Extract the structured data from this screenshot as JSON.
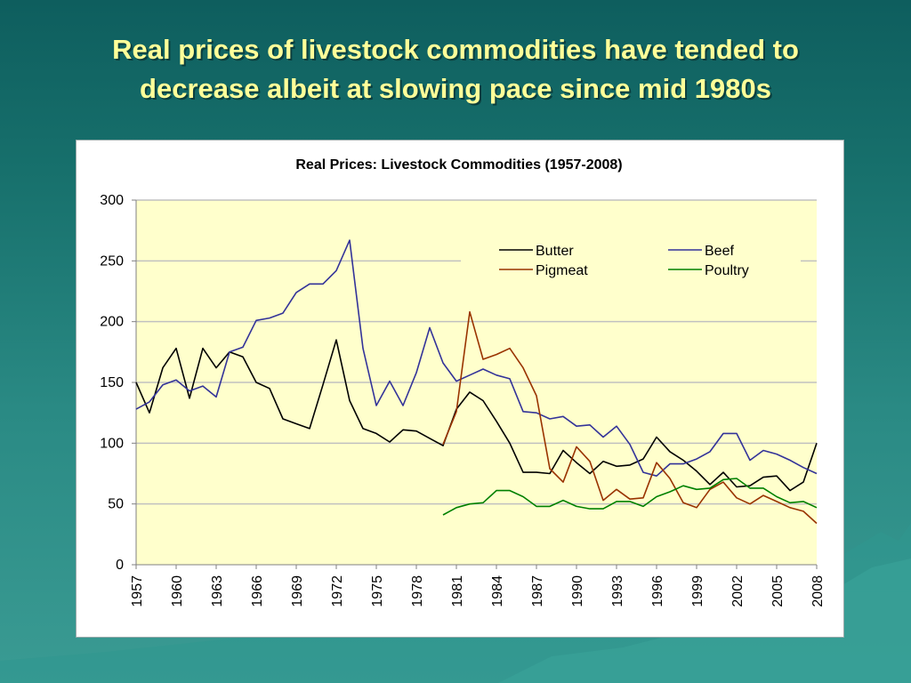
{
  "slide": {
    "title_line1": "Real prices of livestock commodities have tended to",
    "title_line2": "decrease albeit at slowing pace since mid 1980s"
  },
  "colors": {
    "title": "#ffff99",
    "plot_bg": "#ffffcc",
    "grid": "#c0c0c0",
    "butter": "#000000",
    "beef": "#333399",
    "pigmeat": "#993300",
    "poultry": "#008000"
  },
  "chart_data": {
    "type": "line",
    "title": "Real Prices: Livestock Commodities (1957-2008)",
    "xlabel": "",
    "ylabel": "",
    "ylim": [
      0,
      300
    ],
    "yticks": [
      0,
      50,
      100,
      150,
      200,
      250,
      300
    ],
    "xlim": [
      1957,
      2008
    ],
    "xtick_labels": [
      "1957",
      "1960",
      "1963",
      "1966",
      "1969",
      "1972",
      "1975",
      "1978",
      "1981",
      "1984",
      "1987",
      "1990",
      "1993",
      "1996",
      "1999",
      "2002",
      "2005",
      "2008"
    ],
    "legend": [
      "Butter",
      "Beef",
      "Pigmeat",
      "Poultry"
    ],
    "legend_position": "top-right",
    "grid": true,
    "series": [
      {
        "name": "Butter",
        "start_year": 1957,
        "values": [
          150,
          125,
          162,
          178,
          137,
          178,
          162,
          175,
          171,
          150,
          145,
          120,
          116,
          112,
          148,
          185,
          135,
          112,
          108,
          101,
          111,
          110,
          104,
          98,
          128,
          142,
          135,
          118,
          100,
          76,
          76,
          75,
          94,
          84,
          75,
          85,
          81,
          82,
          87,
          105,
          93,
          86,
          77,
          66,
          76,
          64,
          65,
          72,
          73,
          61,
          68,
          100
        ]
      },
      {
        "name": "Beef",
        "start_year": 1957,
        "values": [
          128,
          134,
          148,
          152,
          143,
          147,
          138,
          175,
          179,
          201,
          203,
          207,
          224,
          231,
          231,
          242,
          267,
          178,
          131,
          151,
          131,
          158,
          195,
          166,
          151,
          156,
          161,
          156,
          153,
          126,
          125,
          120,
          122,
          114,
          115,
          105,
          114,
          99,
          76,
          73,
          83,
          83,
          87,
          93,
          108,
          108,
          86,
          94,
          91,
          86,
          80,
          75
        ]
      },
      {
        "name": "Pigmeat",
        "start_year": 1980,
        "values": [
          99,
          126,
          208,
          169,
          173,
          178,
          162,
          139,
          79,
          68,
          97,
          85,
          53,
          62,
          54,
          55,
          84,
          71,
          51,
          47,
          62,
          68,
          55,
          50,
          57,
          52,
          47,
          44,
          34
        ]
      },
      {
        "name": "Poultry",
        "start_year": 1980,
        "values": [
          41,
          47,
          50,
          51,
          61,
          61,
          56,
          48,
          48,
          53,
          48,
          46,
          46,
          52,
          52,
          48,
          56,
          60,
          65,
          62,
          63,
          70,
          71,
          63,
          63,
          56,
          51,
          52,
          47
        ]
      }
    ]
  }
}
